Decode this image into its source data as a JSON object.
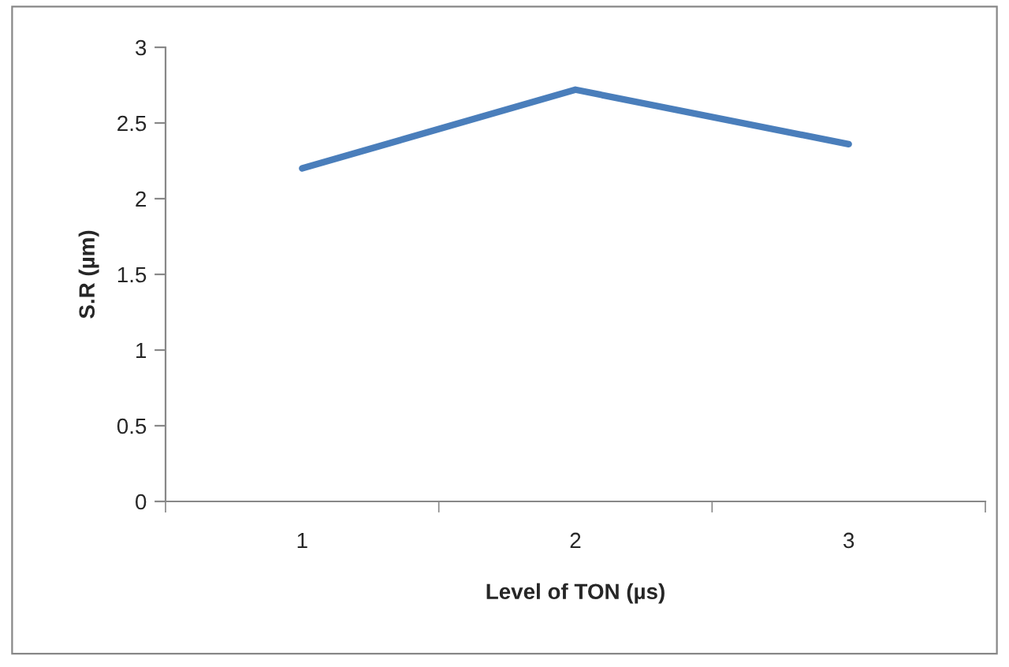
{
  "chart_data": {
    "type": "line",
    "xlabel": "Level of TON (µs)",
    "ylabel": "S.R (µm)",
    "categories": [
      "1",
      "2",
      "3"
    ],
    "series": [
      {
        "color": "#4a7ebb",
        "values": [
          2.2,
          2.72,
          2.36
        ]
      }
    ],
    "ylim": [
      0,
      3
    ],
    "yticks": [
      0,
      0.5,
      1,
      1.5,
      2,
      2.5,
      3
    ],
    "grid": false,
    "legend": false,
    "marker": "none",
    "line_style": "solid"
  }
}
